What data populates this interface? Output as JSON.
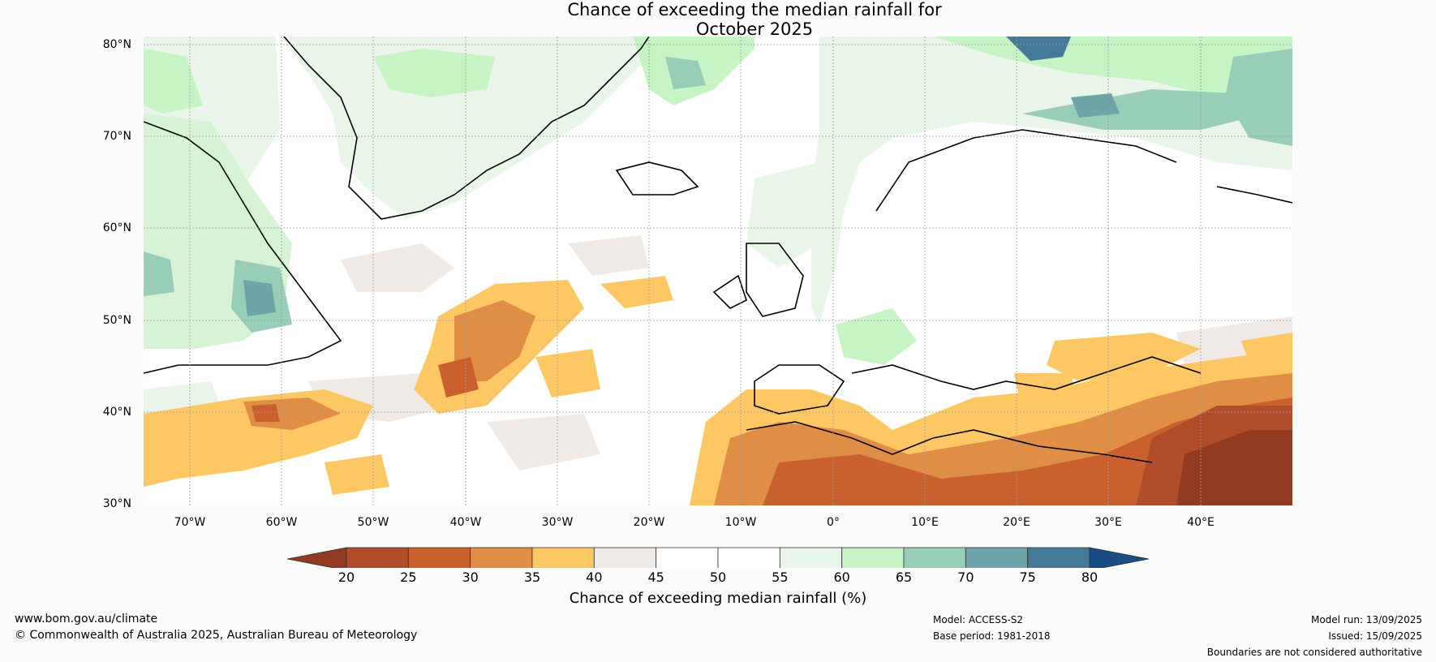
{
  "title": {
    "line1": "Chance of exceeding the median rainfall for",
    "line2": "October 2025"
  },
  "map": {
    "lat_labels": [
      "80°N",
      "70°N",
      "60°N",
      "50°N",
      "40°N",
      "30°N"
    ],
    "lon_labels": [
      "70°W",
      "60°W",
      "50°W",
      "40°W",
      "30°W",
      "20°W",
      "10°W",
      "0°",
      "10°E",
      "20°E",
      "30°E",
      "40°E"
    ],
    "extent": {
      "lon_min": -75,
      "lon_max": 50,
      "lat_min": 30,
      "lat_max": 81
    }
  },
  "colorbar": {
    "ticks": [
      "20",
      "25",
      "30",
      "35",
      "40",
      "45",
      "50",
      "55",
      "60",
      "65",
      "70",
      "75",
      "80"
    ],
    "colors": [
      "#b24d2c",
      "#c9602e",
      "#e08d45",
      "#fdc864",
      "#efeae5",
      "#ffffff",
      "#ffffff",
      "#e8f5e8",
      "#c6f4c4",
      "#98cdb8",
      "#6da5a8",
      "#437a97"
    ],
    "low_extend_color": "#933b22",
    "high_extend_color": "#1b4d85",
    "label": "Chance of exceeding median rainfall (%)"
  },
  "footer": {
    "website": "www.bom.gov.au/climate",
    "copyright": "© Commonwealth of Australia 2025, Australian Bureau of Meteorology",
    "model": "Model: ACCESS-S2",
    "base_period": "Base period: 1981-2018",
    "model_run": "Model run: 13/09/2025",
    "issued": "Issued: 15/09/2025",
    "disclaimer": "Boundaries are not considered authoritative"
  }
}
